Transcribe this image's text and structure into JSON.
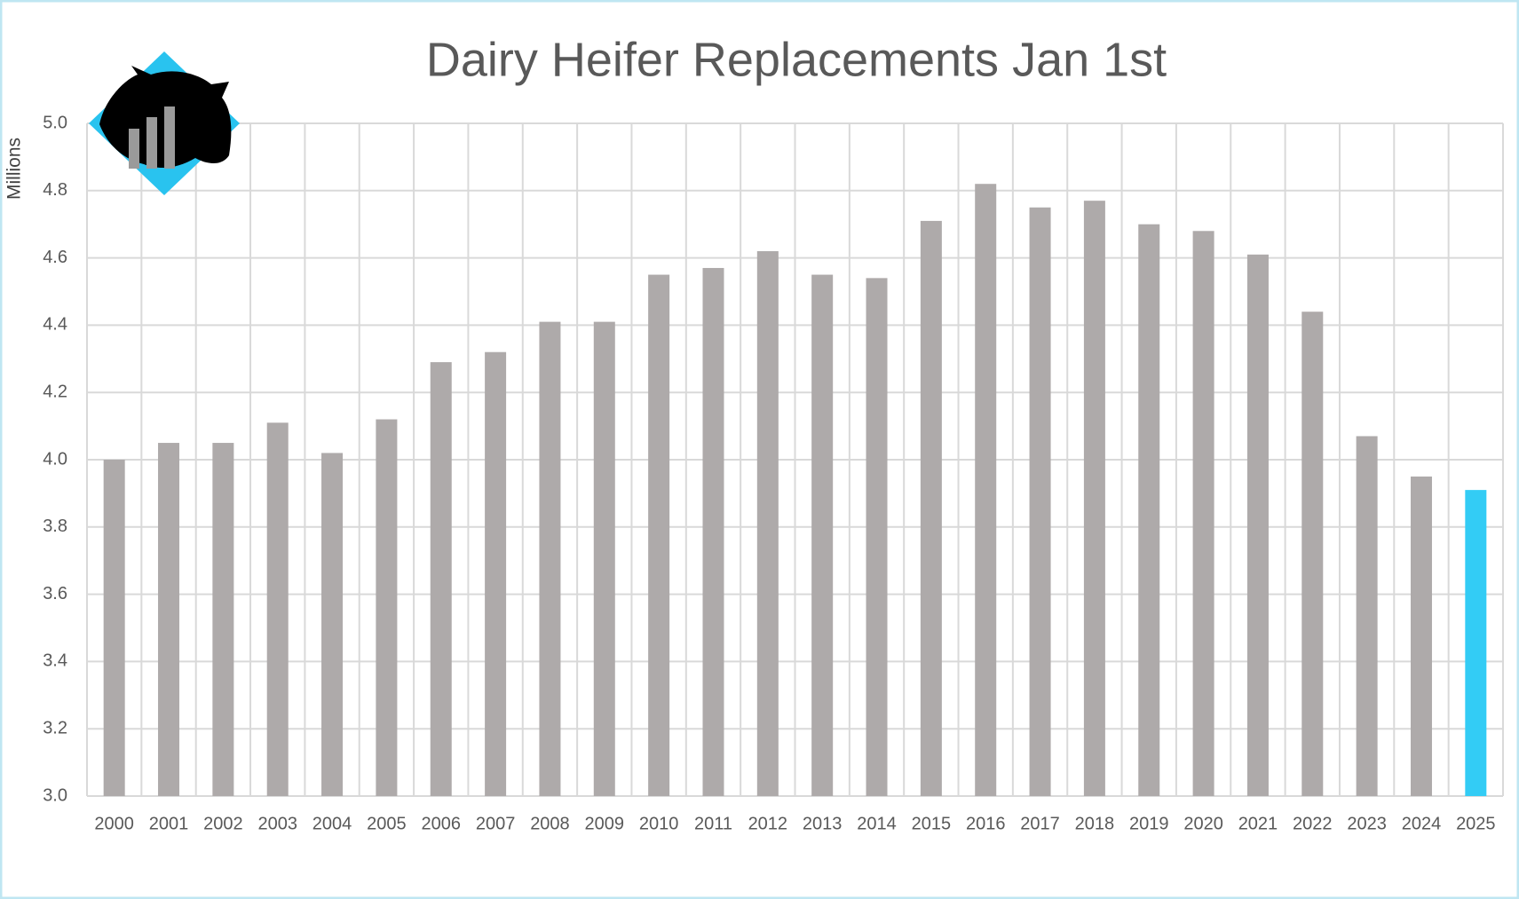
{
  "chart_data": {
    "type": "bar",
    "title": "Dairy Heifer Replacements Jan 1st",
    "y_axis_label": "Millions",
    "categories": [
      "2000",
      "2001",
      "2002",
      "2003",
      "2004",
      "2005",
      "2006",
      "2007",
      "2008",
      "2009",
      "2010",
      "2011",
      "2012",
      "2013",
      "2014",
      "2015",
      "2016",
      "2017",
      "2018",
      "2019",
      "2020",
      "2021",
      "2022",
      "2023",
      "2024",
      "2025"
    ],
    "values": [
      4.0,
      4.05,
      4.05,
      4.11,
      4.02,
      4.12,
      4.29,
      4.32,
      4.41,
      4.41,
      4.55,
      4.57,
      4.62,
      4.55,
      4.54,
      4.71,
      4.82,
      4.75,
      4.77,
      4.7,
      4.68,
      4.61,
      4.44,
      4.07,
      3.95,
      3.91
    ],
    "colors": [
      "#aeaaaa",
      "#aeaaaa",
      "#aeaaaa",
      "#aeaaaa",
      "#aeaaaa",
      "#aeaaaa",
      "#aeaaaa",
      "#aeaaaa",
      "#aeaaaa",
      "#aeaaaa",
      "#aeaaaa",
      "#aeaaaa",
      "#aeaaaa",
      "#aeaaaa",
      "#aeaaaa",
      "#aeaaaa",
      "#aeaaaa",
      "#aeaaaa",
      "#aeaaaa",
      "#aeaaaa",
      "#aeaaaa",
      "#aeaaaa",
      "#aeaaaa",
      "#aeaaaa",
      "#aeaaaa",
      "#33ccf5"
    ],
    "ylim": [
      3.0,
      5.0
    ],
    "yticks": [
      {
        "value": 3.0,
        "label": "3.0"
      },
      {
        "value": 3.2,
        "label": "3.2"
      },
      {
        "value": 3.4,
        "label": "3.4"
      },
      {
        "value": 3.6,
        "label": "3.6"
      },
      {
        "value": 3.8,
        "label": "3.8"
      },
      {
        "value": 4.0,
        "label": "4.0"
      },
      {
        "value": 4.2,
        "label": "4.2"
      },
      {
        "value": 4.4,
        "label": "4.4"
      },
      {
        "value": 4.6,
        "label": "4.6"
      },
      {
        "value": 4.8,
        "label": "4.8"
      },
      {
        "value": 5.0,
        "label": "5.0"
      }
    ],
    "grid": true
  }
}
